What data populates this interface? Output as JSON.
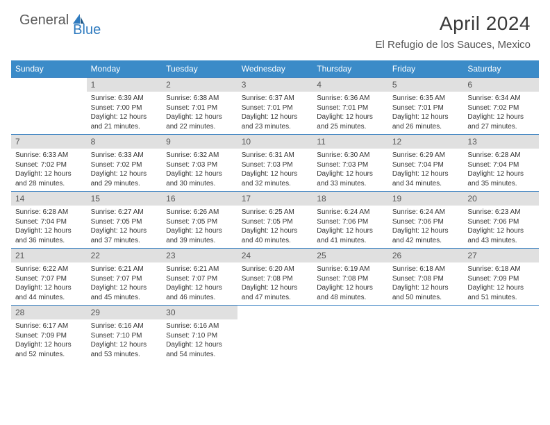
{
  "logo": {
    "general": "General",
    "blue": "Blue"
  },
  "title": "April 2024",
  "location": "El Refugio de los Sauces, Mexico",
  "colors": {
    "header_bg": "#3b8bc8",
    "header_text": "#ffffff",
    "daynum_bg": "#e0e0e0",
    "daynum_text": "#555555",
    "border": "#2f7bbf",
    "body_text": "#333333",
    "logo_general": "#5a5a5a",
    "logo_blue": "#2f7bbf"
  },
  "fonts": {
    "title_pt": 28,
    "location_pt": 15,
    "header_pt": 12,
    "daynum_pt": 12,
    "info_pt": 10
  },
  "day_labels": [
    "Sunday",
    "Monday",
    "Tuesday",
    "Wednesday",
    "Thursday",
    "Friday",
    "Saturday"
  ],
  "weeks": [
    [
      null,
      {
        "n": "1",
        "sr": "Sunrise: 6:39 AM",
        "ss": "Sunset: 7:00 PM",
        "d1": "Daylight: 12 hours",
        "d2": "and 21 minutes."
      },
      {
        "n": "2",
        "sr": "Sunrise: 6:38 AM",
        "ss": "Sunset: 7:01 PM",
        "d1": "Daylight: 12 hours",
        "d2": "and 22 minutes."
      },
      {
        "n": "3",
        "sr": "Sunrise: 6:37 AM",
        "ss": "Sunset: 7:01 PM",
        "d1": "Daylight: 12 hours",
        "d2": "and 23 minutes."
      },
      {
        "n": "4",
        "sr": "Sunrise: 6:36 AM",
        "ss": "Sunset: 7:01 PM",
        "d1": "Daylight: 12 hours",
        "d2": "and 25 minutes."
      },
      {
        "n": "5",
        "sr": "Sunrise: 6:35 AM",
        "ss": "Sunset: 7:01 PM",
        "d1": "Daylight: 12 hours",
        "d2": "and 26 minutes."
      },
      {
        "n": "6",
        "sr": "Sunrise: 6:34 AM",
        "ss": "Sunset: 7:02 PM",
        "d1": "Daylight: 12 hours",
        "d2": "and 27 minutes."
      }
    ],
    [
      {
        "n": "7",
        "sr": "Sunrise: 6:33 AM",
        "ss": "Sunset: 7:02 PM",
        "d1": "Daylight: 12 hours",
        "d2": "and 28 minutes."
      },
      {
        "n": "8",
        "sr": "Sunrise: 6:33 AM",
        "ss": "Sunset: 7:02 PM",
        "d1": "Daylight: 12 hours",
        "d2": "and 29 minutes."
      },
      {
        "n": "9",
        "sr": "Sunrise: 6:32 AM",
        "ss": "Sunset: 7:03 PM",
        "d1": "Daylight: 12 hours",
        "d2": "and 30 minutes."
      },
      {
        "n": "10",
        "sr": "Sunrise: 6:31 AM",
        "ss": "Sunset: 7:03 PM",
        "d1": "Daylight: 12 hours",
        "d2": "and 32 minutes."
      },
      {
        "n": "11",
        "sr": "Sunrise: 6:30 AM",
        "ss": "Sunset: 7:03 PM",
        "d1": "Daylight: 12 hours",
        "d2": "and 33 minutes."
      },
      {
        "n": "12",
        "sr": "Sunrise: 6:29 AM",
        "ss": "Sunset: 7:04 PM",
        "d1": "Daylight: 12 hours",
        "d2": "and 34 minutes."
      },
      {
        "n": "13",
        "sr": "Sunrise: 6:28 AM",
        "ss": "Sunset: 7:04 PM",
        "d1": "Daylight: 12 hours",
        "d2": "and 35 minutes."
      }
    ],
    [
      {
        "n": "14",
        "sr": "Sunrise: 6:28 AM",
        "ss": "Sunset: 7:04 PM",
        "d1": "Daylight: 12 hours",
        "d2": "and 36 minutes."
      },
      {
        "n": "15",
        "sr": "Sunrise: 6:27 AM",
        "ss": "Sunset: 7:05 PM",
        "d1": "Daylight: 12 hours",
        "d2": "and 37 minutes."
      },
      {
        "n": "16",
        "sr": "Sunrise: 6:26 AM",
        "ss": "Sunset: 7:05 PM",
        "d1": "Daylight: 12 hours",
        "d2": "and 39 minutes."
      },
      {
        "n": "17",
        "sr": "Sunrise: 6:25 AM",
        "ss": "Sunset: 7:05 PM",
        "d1": "Daylight: 12 hours",
        "d2": "and 40 minutes."
      },
      {
        "n": "18",
        "sr": "Sunrise: 6:24 AM",
        "ss": "Sunset: 7:06 PM",
        "d1": "Daylight: 12 hours",
        "d2": "and 41 minutes."
      },
      {
        "n": "19",
        "sr": "Sunrise: 6:24 AM",
        "ss": "Sunset: 7:06 PM",
        "d1": "Daylight: 12 hours",
        "d2": "and 42 minutes."
      },
      {
        "n": "20",
        "sr": "Sunrise: 6:23 AM",
        "ss": "Sunset: 7:06 PM",
        "d1": "Daylight: 12 hours",
        "d2": "and 43 minutes."
      }
    ],
    [
      {
        "n": "21",
        "sr": "Sunrise: 6:22 AM",
        "ss": "Sunset: 7:07 PM",
        "d1": "Daylight: 12 hours",
        "d2": "and 44 minutes."
      },
      {
        "n": "22",
        "sr": "Sunrise: 6:21 AM",
        "ss": "Sunset: 7:07 PM",
        "d1": "Daylight: 12 hours",
        "d2": "and 45 minutes."
      },
      {
        "n": "23",
        "sr": "Sunrise: 6:21 AM",
        "ss": "Sunset: 7:07 PM",
        "d1": "Daylight: 12 hours",
        "d2": "and 46 minutes."
      },
      {
        "n": "24",
        "sr": "Sunrise: 6:20 AM",
        "ss": "Sunset: 7:08 PM",
        "d1": "Daylight: 12 hours",
        "d2": "and 47 minutes."
      },
      {
        "n": "25",
        "sr": "Sunrise: 6:19 AM",
        "ss": "Sunset: 7:08 PM",
        "d1": "Daylight: 12 hours",
        "d2": "and 48 minutes."
      },
      {
        "n": "26",
        "sr": "Sunrise: 6:18 AM",
        "ss": "Sunset: 7:08 PM",
        "d1": "Daylight: 12 hours",
        "d2": "and 50 minutes."
      },
      {
        "n": "27",
        "sr": "Sunrise: 6:18 AM",
        "ss": "Sunset: 7:09 PM",
        "d1": "Daylight: 12 hours",
        "d2": "and 51 minutes."
      }
    ],
    [
      {
        "n": "28",
        "sr": "Sunrise: 6:17 AM",
        "ss": "Sunset: 7:09 PM",
        "d1": "Daylight: 12 hours",
        "d2": "and 52 minutes."
      },
      {
        "n": "29",
        "sr": "Sunrise: 6:16 AM",
        "ss": "Sunset: 7:10 PM",
        "d1": "Daylight: 12 hours",
        "d2": "and 53 minutes."
      },
      {
        "n": "30",
        "sr": "Sunrise: 6:16 AM",
        "ss": "Sunset: 7:10 PM",
        "d1": "Daylight: 12 hours",
        "d2": "and 54 minutes."
      },
      null,
      null,
      null,
      null
    ]
  ]
}
